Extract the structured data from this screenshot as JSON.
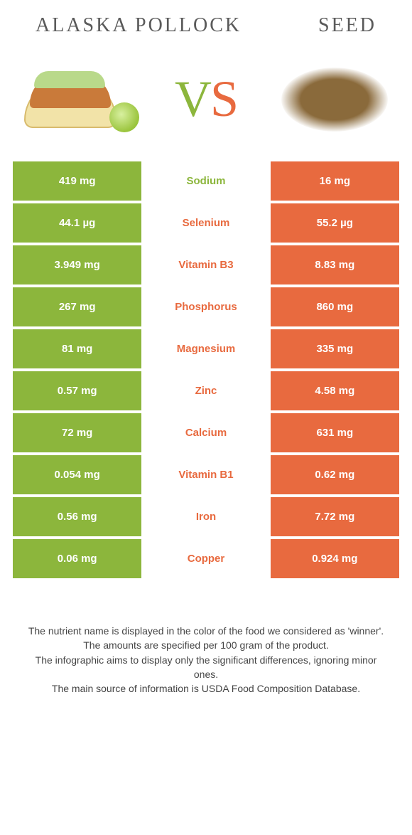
{
  "colors": {
    "left": "#8cb63c",
    "right": "#e86a3f",
    "bg": "#ffffff"
  },
  "header": {
    "left_title": "Alaska pollock",
    "right_title": "Seed"
  },
  "rows": [
    {
      "left": "419 mg",
      "name": "Sodium",
      "right": "16 mg",
      "winner": "left"
    },
    {
      "left": "44.1 µg",
      "name": "Selenium",
      "right": "55.2 µg",
      "winner": "right"
    },
    {
      "left": "3.949 mg",
      "name": "Vitamin B3",
      "right": "8.83 mg",
      "winner": "right"
    },
    {
      "left": "267 mg",
      "name": "Phosphorus",
      "right": "860 mg",
      "winner": "right"
    },
    {
      "left": "81 mg",
      "name": "Magnesium",
      "right": "335 mg",
      "winner": "right"
    },
    {
      "left": "0.57 mg",
      "name": "Zinc",
      "right": "4.58 mg",
      "winner": "right"
    },
    {
      "left": "72 mg",
      "name": "Calcium",
      "right": "631 mg",
      "winner": "right"
    },
    {
      "left": "0.054 mg",
      "name": "Vitamin B1",
      "right": "0.62 mg",
      "winner": "right"
    },
    {
      "left": "0.56 mg",
      "name": "Iron",
      "right": "7.72 mg",
      "winner": "right"
    },
    {
      "left": "0.06 mg",
      "name": "Copper",
      "right": "0.924 mg",
      "winner": "right"
    }
  ],
  "footer": {
    "line1": "The nutrient name is displayed in the color of the food we considered as 'winner'.",
    "line2": "The amounts are specified per 100 gram of the product.",
    "line3": "The infographic aims to display only the significant differences, ignoring minor ones.",
    "line4": "The main source of information is USDA Food Composition Database."
  }
}
